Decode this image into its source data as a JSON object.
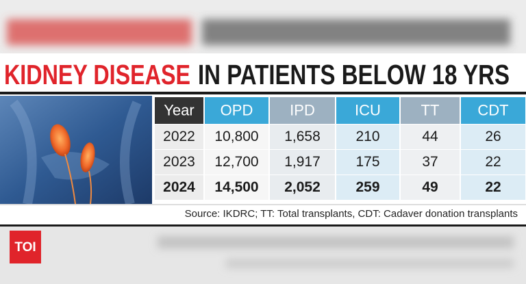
{
  "title": {
    "highlight": "KIDNEY DISEASE",
    "rest": "IN PATIENTS BELOW 18 YRS"
  },
  "table": {
    "columns": [
      "Year",
      "OPD",
      "IPD",
      "ICU",
      "TT",
      "CDT"
    ],
    "rows": [
      [
        "2022",
        "10,800",
        "1,658",
        "210",
        "44",
        "26"
      ],
      [
        "2023",
        "12,700",
        "1,917",
        "175",
        "37",
        "22"
      ],
      [
        "2024",
        "14,500",
        "2,052",
        "259",
        "49",
        "22"
      ]
    ]
  },
  "source": "Source: IKDRC; TT: Total transplants, CDT: Cadaver donation transplants",
  "logo": "TOI"
}
